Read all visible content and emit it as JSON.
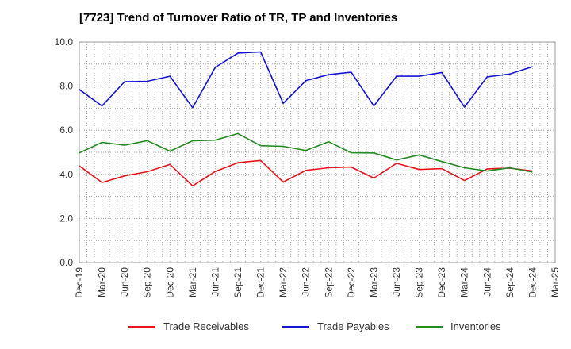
{
  "chart_data": {
    "type": "line",
    "title": "[7723]  Trend of Turnover Ratio of TR, TP and Inventories",
    "xlabel": "",
    "ylabel": "",
    "ylim": [
      0,
      10
    ],
    "yticks": [
      "0.0",
      "2.0",
      "4.0",
      "6.0",
      "8.0",
      "10.0"
    ],
    "grid": true,
    "legend_position": "bottom",
    "x": [
      "Dec-19",
      "Mar-20",
      "Jun-20",
      "Sep-20",
      "Dec-20",
      "Mar-21",
      "Jun-21",
      "Sep-21",
      "Dec-21",
      "Mar-22",
      "Jun-22",
      "Sep-22",
      "Dec-22",
      "Mar-23",
      "Jun-23",
      "Sep-23",
      "Dec-23",
      "Mar-24",
      "Jun-24",
      "Sep-24",
      "Dec-24"
    ],
    "xticks": [
      "Dec-19",
      "Mar-20",
      "Jun-20",
      "Sep-20",
      "Dec-20",
      "Mar-21",
      "Jun-21",
      "Sep-21",
      "Dec-21",
      "Mar-22",
      "Jun-22",
      "Sep-22",
      "Dec-22",
      "Mar-23",
      "Jun-23",
      "Sep-23",
      "Dec-23",
      "Mar-24",
      "Jun-24",
      "Sep-24",
      "Dec-24",
      "Mar-25"
    ],
    "series": [
      {
        "name": "Trade Receivables",
        "color": "#e8141c",
        "values": [
          4.38,
          3.63,
          3.93,
          4.12,
          4.45,
          3.48,
          4.13,
          4.53,
          4.63,
          3.65,
          4.18,
          4.3,
          4.33,
          3.83,
          4.5,
          4.22,
          4.26,
          3.72,
          4.25,
          4.28,
          4.15
        ]
      },
      {
        "name": "Trade Payables",
        "color": "#1414d2",
        "values": [
          7.85,
          7.1,
          8.2,
          8.22,
          8.45,
          7.02,
          8.85,
          9.5,
          9.55,
          7.22,
          8.25,
          8.52,
          8.63,
          7.1,
          8.45,
          8.45,
          8.62,
          7.05,
          8.42,
          8.55,
          8.88
        ]
      },
      {
        "name": "Inventories",
        "color": "#228b22",
        "values": [
          4.97,
          5.45,
          5.32,
          5.53,
          5.05,
          5.52,
          5.55,
          5.85,
          5.3,
          5.27,
          5.08,
          5.48,
          4.98,
          4.97,
          4.65,
          4.88,
          4.58,
          4.3,
          4.15,
          4.3,
          4.1
        ]
      }
    ]
  }
}
